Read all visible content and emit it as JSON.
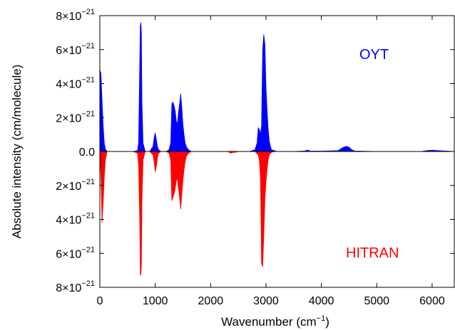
{
  "chart_data": {
    "type": "area",
    "xlabel": "Wavenumber (cm",
    "xlabel_sup": "−1",
    "xlabel_end": ")",
    "ylabel": "Absolute intensity (cm/molecule)",
    "xlim": [
      0,
      6400
    ],
    "ylim": [
      -8e-21,
      8e-21
    ],
    "x_ticks": [
      0,
      1000,
      2000,
      3000,
      4000,
      5000,
      6000
    ],
    "x_tick_labels": [
      "0",
      "1000",
      "2000",
      "3000",
      "4000",
      "5000",
      "6000"
    ],
    "y_ticks": [
      8e-21,
      6e-21,
      4e-21,
      2e-21,
      0,
      -2e-21,
      -4e-21,
      -6e-21,
      -8e-21
    ],
    "y_tick_labels": [
      {
        "mant": "8×10",
        "exp": "−21"
      },
      {
        "mant": "6×10",
        "exp": "−21"
      },
      {
        "mant": "4×10",
        "exp": "−21"
      },
      {
        "mant": "2×10",
        "exp": "−21"
      },
      {
        "mant": "0.0",
        "exp": ""
      },
      {
        "mant": "2×10",
        "exp": "−21"
      },
      {
        "mant": "4×10",
        "exp": "−21"
      },
      {
        "mant": "6×10",
        "exp": "−21"
      },
      {
        "mant": "8×10",
        "exp": "−21"
      }
    ],
    "grid": false,
    "series": [
      {
        "name": "OYT",
        "color": "#0000ff",
        "direction": "up",
        "x": [
          0,
          20,
          40,
          60,
          80,
          100,
          130,
          200,
          400,
          600,
          680,
          700,
          720,
          730,
          740,
          750,
          760,
          780,
          820,
          900,
          960,
          980,
          1000,
          1020,
          1040,
          1060,
          1100,
          1200,
          1250,
          1280,
          1300,
          1320,
          1340,
          1360,
          1380,
          1400,
          1420,
          1440,
          1460,
          1480,
          1500,
          1520,
          1540,
          1560,
          1600,
          1650,
          1700,
          2000,
          2200,
          2300,
          2400,
          2500,
          2700,
          2800,
          2840,
          2860,
          2880,
          2900,
          2920,
          2940,
          2960,
          2980,
          3000,
          3020,
          3040,
          3060,
          3080,
          3100,
          3150,
          3200,
          3500,
          3700,
          3750,
          3800,
          4000,
          4300,
          4350,
          4400,
          4450,
          4500,
          4550,
          4600,
          5000,
          5800,
          5900,
          6000,
          6100,
          6400
        ],
        "values": [
          4.8e-21,
          4.6e-21,
          3e-21,
          1.5e-21,
          5e-22,
          1.5e-22,
          0,
          0,
          0,
          0,
          5e-23,
          5e-22,
          5e-21,
          7.4e-21,
          7.6e-21,
          7e-21,
          3e-21,
          5e-22,
          0,
          0,
          3e-22,
          8e-22,
          1.1e-21,
          7e-22,
          3e-22,
          1e-22,
          0,
          0,
          1e-22,
          5e-22,
          2.8e-21,
          2.9e-21,
          2.7e-21,
          2.4e-21,
          1.8e-21,
          1.6e-21,
          2.3e-21,
          2.8e-21,
          3.4e-21,
          2.6e-21,
          1.6e-21,
          1e-21,
          5e-22,
          3e-22,
          1e-22,
          0,
          0,
          0,
          0,
          0,
          0,
          0,
          0,
          1e-22,
          5e-22,
          1.4e-21,
          1.3e-21,
          1e-21,
          1.5e-21,
          6e-21,
          6.9e-21,
          6.3e-21,
          3.8e-21,
          2.4e-21,
          1.3e-21,
          6e-22,
          3e-22,
          1e-22,
          5e-23,
          0,
          0,
          3e-23,
          8e-23,
          3e-23,
          2e-23,
          5e-23,
          1.5e-22,
          2.5e-22,
          3e-22,
          2.5e-22,
          1e-22,
          3e-23,
          0,
          0,
          5e-23,
          8e-23,
          5e-23,
          0
        ]
      },
      {
        "name": "HITRAN",
        "color": "#ff0000",
        "direction": "down",
        "x": [
          0,
          20,
          40,
          60,
          80,
          100,
          130,
          200,
          600,
          680,
          700,
          720,
          730,
          740,
          750,
          760,
          780,
          820,
          900,
          960,
          980,
          1000,
          1020,
          1040,
          1060,
          1100,
          1200,
          1250,
          1280,
          1300,
          1320,
          1340,
          1360,
          1380,
          1400,
          1420,
          1440,
          1460,
          1480,
          1500,
          1520,
          1540,
          1560,
          1600,
          1650,
          1700,
          2000,
          2300,
          2340,
          2360,
          2400,
          2450,
          2500,
          2800,
          2860,
          2880,
          2900,
          2920,
          2940,
          2960,
          2980,
          3000,
          3020,
          3040,
          3060,
          3080,
          3100,
          3150,
          3200,
          6400
        ],
        "values": [
          1e-22,
          1.5e-21,
          4.2e-21,
          3e-21,
          1.5e-21,
          5e-22,
          0,
          0,
          0,
          1e-22,
          8e-22,
          4e-21,
          7.2e-21,
          7.3e-21,
          6.6e-21,
          3e-21,
          5e-22,
          0,
          0,
          2e-22,
          6e-22,
          1.2e-21,
          9e-22,
          4e-22,
          1e-22,
          0,
          0,
          1e-22,
          5e-22,
          2.9e-21,
          2.7e-21,
          2.5e-21,
          2.2e-21,
          1.7e-21,
          1.6e-21,
          2.2e-21,
          2.7e-21,
          3.4e-21,
          2.5e-21,
          1.7e-21,
          1.1e-21,
          6e-22,
          3e-22,
          1e-22,
          0,
          0,
          0,
          0,
          5e-23,
          1e-22,
          5e-23,
          5e-23,
          0,
          0,
          2e-22,
          5e-22,
          1.5e-21,
          6.6e-21,
          6.8e-21,
          5e-21,
          2.8e-21,
          1.8e-21,
          1e-21,
          5e-22,
          2e-22,
          1e-22,
          5e-23,
          0,
          0,
          0
        ]
      }
    ]
  }
}
